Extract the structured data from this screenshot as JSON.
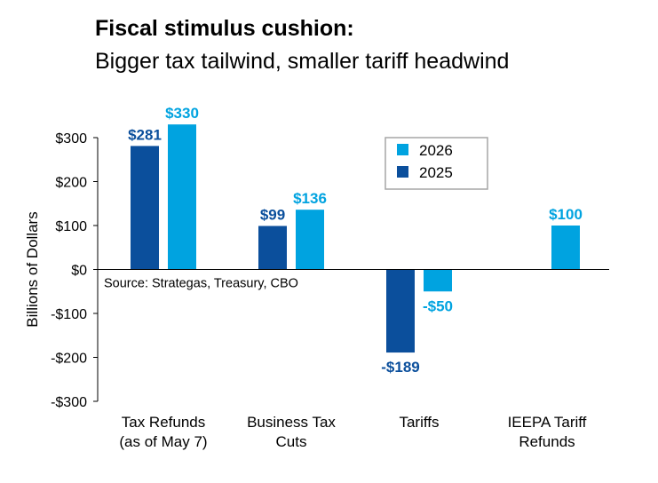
{
  "chart_data": {
    "type": "bar",
    "title": "Fiscal stimulus cushion:",
    "subtitle": "Bigger tax tailwind, smaller tariff headwind",
    "ylabel": "Billions of Dollars",
    "ylim": [
      -300,
      300
    ],
    "yticks": [
      300,
      200,
      100,
      0,
      -100,
      -200,
      -300
    ],
    "ytick_labels": [
      "$300",
      "$200",
      "$100",
      "$0",
      "-$100",
      "-$200",
      "-$300"
    ],
    "categories": [
      [
        "Tax Refunds",
        "(as of May 7)"
      ],
      [
        "Business Tax",
        "Cuts"
      ],
      [
        "Tariffs"
      ],
      [
        "IEEPA Tariff",
        "Refunds"
      ]
    ],
    "series": [
      {
        "name": "2025",
        "color": "#0b4f9c",
        "values": [
          281,
          99,
          -189,
          null
        ],
        "labels": [
          "$281",
          "$99",
          "-$189",
          ""
        ]
      },
      {
        "name": "2026",
        "color": "#00a3e0",
        "values": [
          330,
          136,
          -50,
          100
        ],
        "labels": [
          "$330",
          "$136",
          "-$50",
          "$100"
        ]
      }
    ],
    "legend": {
      "position": "top-right",
      "order": [
        "2026",
        "2025"
      ]
    },
    "annotation": "Source: Strategas, Treasury, CBO",
    "grid": false
  }
}
